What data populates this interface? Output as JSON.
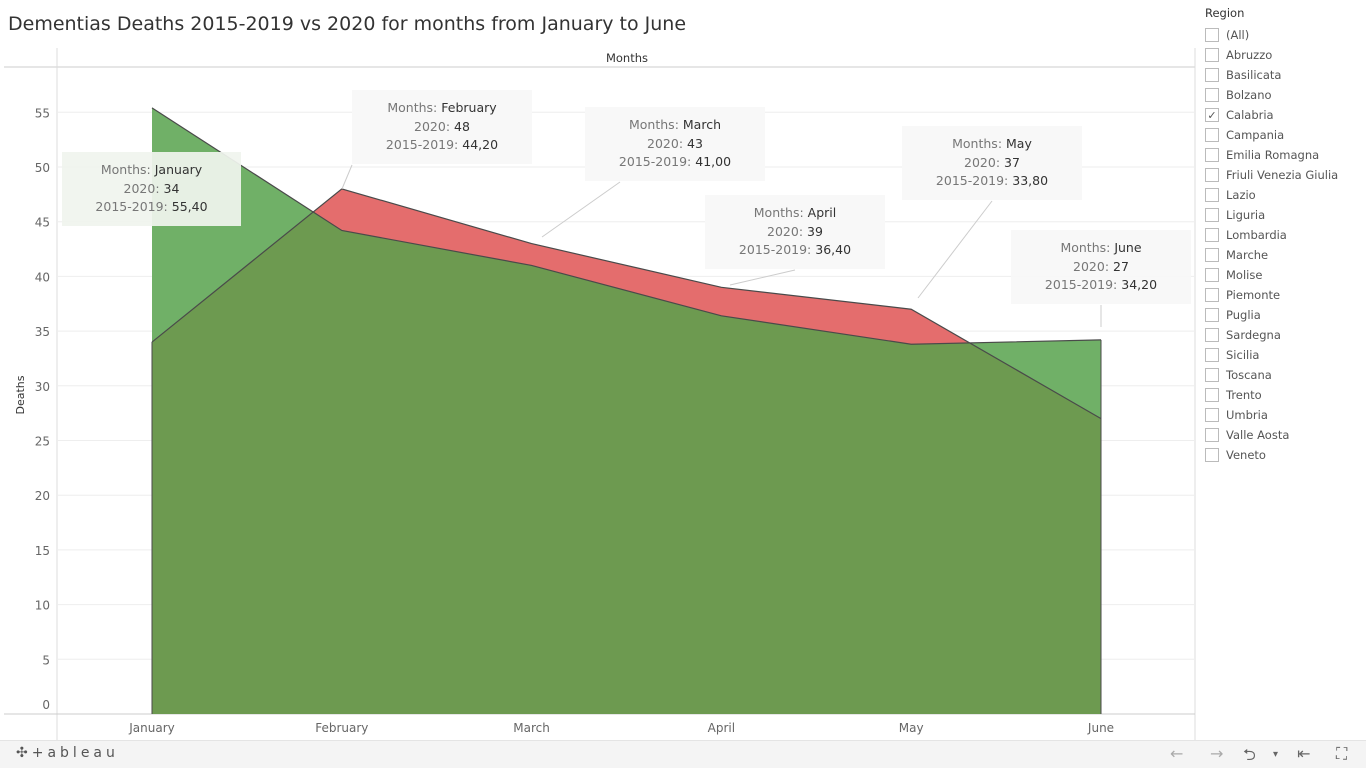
{
  "title": "Dementias Deaths 2015-2019 vs 2020 for months from January to June",
  "chart_data": {
    "type": "area",
    "title": "Dementias Deaths 2015-2019 vs 2020 for months from January to June",
    "column_header": "Months",
    "xlabel": "",
    "ylabel": "Deaths",
    "categories": [
      "January",
      "February",
      "March",
      "April",
      "May",
      "June"
    ],
    "yticks": [
      0,
      5,
      10,
      15,
      20,
      25,
      30,
      35,
      40,
      45,
      50,
      55
    ],
    "ylim": [
      0,
      59
    ],
    "series": [
      {
        "name": "2020",
        "values": [
          34,
          48,
          43,
          39,
          37,
          27
        ],
        "color": "#e46d6d"
      },
      {
        "name": "2015-2019",
        "values": [
          55.4,
          44.2,
          41,
          36.4,
          33.8,
          34.2
        ],
        "color": "#70b067"
      }
    ],
    "overlap_color": "#6d9a50",
    "annotations": [
      {
        "month_label": "Months:",
        "month": "January",
        "y2020_label": "2020:",
        "y2020": "34",
        "base_label": "2015-2019:",
        "base": "55,40"
      },
      {
        "month_label": "Months:",
        "month": "February",
        "y2020_label": "2020:",
        "y2020": "48",
        "base_label": "2015-2019:",
        "base": "44,20"
      },
      {
        "month_label": "Months:",
        "month": "March",
        "y2020_label": "2020:",
        "y2020": "43",
        "base_label": "2015-2019:",
        "base": "41,00"
      },
      {
        "month_label": "Months:",
        "month": "April",
        "y2020_label": "2020:",
        "y2020": "39",
        "base_label": "2015-2019:",
        "base": "36,40"
      },
      {
        "month_label": "Months:",
        "month": "May",
        "y2020_label": "2020:",
        "y2020": "37",
        "base_label": "2015-2019:",
        "base": "33,80"
      },
      {
        "month_label": "Months:",
        "month": "June",
        "y2020_label": "2020:",
        "y2020": "27",
        "base_label": "2015-2019:",
        "base": "34,20"
      }
    ]
  },
  "legend": {
    "title": "Region",
    "items": [
      {
        "label": "(All)",
        "checked": false
      },
      {
        "label": "Abruzzo",
        "checked": false
      },
      {
        "label": "Basilicata",
        "checked": false
      },
      {
        "label": "Bolzano",
        "checked": false
      },
      {
        "label": "Calabria",
        "checked": true
      },
      {
        "label": "Campania",
        "checked": false
      },
      {
        "label": "Emilia Romagna",
        "checked": false
      },
      {
        "label": "Friuli Venezia Giulia",
        "checked": false
      },
      {
        "label": "Lazio",
        "checked": false
      },
      {
        "label": "Liguria",
        "checked": false
      },
      {
        "label": "Lombardia",
        "checked": false
      },
      {
        "label": "Marche",
        "checked": false
      },
      {
        "label": "Molise",
        "checked": false
      },
      {
        "label": "Piemonte",
        "checked": false
      },
      {
        "label": "Puglia",
        "checked": false
      },
      {
        "label": "Sardegna",
        "checked": false
      },
      {
        "label": "Sicilia",
        "checked": false
      },
      {
        "label": "Toscana",
        "checked": false
      },
      {
        "label": "Trento",
        "checked": false
      },
      {
        "label": "Umbria",
        "checked": false
      },
      {
        "label": "Valle Aosta",
        "checked": false
      },
      {
        "label": "Veneto",
        "checked": false
      }
    ]
  },
  "footer": {
    "logo": "+ableau",
    "undo": "←",
    "redo": "→",
    "revert": "⮌",
    "revert_caret": "▾",
    "reset": "⇤",
    "fullscreen": "⛶"
  }
}
